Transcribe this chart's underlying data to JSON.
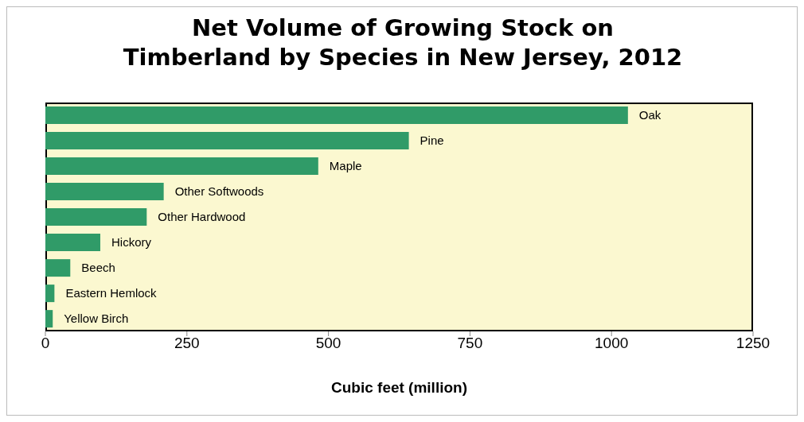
{
  "chart_data": {
    "type": "bar",
    "orientation": "horizontal",
    "title": "Net Volume of Growing Stock on\nTimberland by Species in New Jersey, 2012",
    "xlabel": "Cubic feet (million)",
    "categories": [
      "Oak",
      "Pine",
      "Maple",
      "Other Softwoods",
      "Other Hardwood",
      "Hickory",
      "Beech",
      "Eastern Hemlock",
      "Yellow Birch"
    ],
    "values": [
      1029,
      642,
      482,
      209,
      179,
      97,
      44,
      16,
      13
    ],
    "color": "#309b68",
    "xlim": [
      0,
      1250
    ],
    "xticks": [
      0,
      250,
      500,
      750,
      1000,
      1250
    ],
    "tick_labels": "x"
  }
}
